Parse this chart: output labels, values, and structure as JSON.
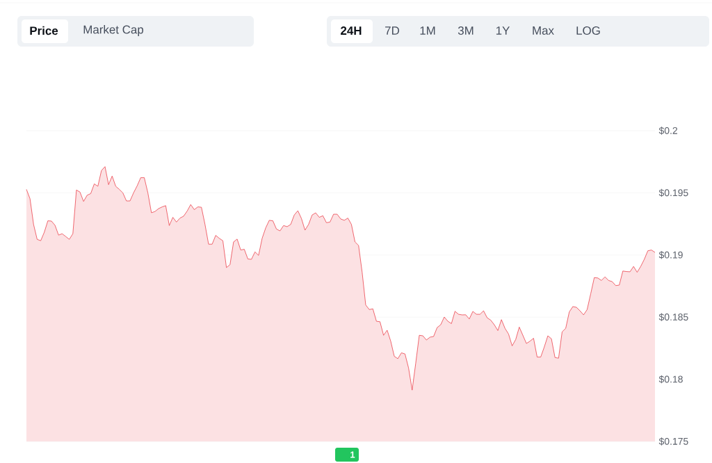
{
  "chart_data": {
    "type": "area",
    "color": "#ea3943",
    "categories": [
      null,
      null,
      null,
      null,
      null,
      null,
      null,
      null,
      null,
      null,
      null,
      null,
      null,
      null,
      null,
      null,
      null,
      null,
      null,
      null,
      null,
      null,
      null,
      null,
      null,
      null,
      null,
      null,
      null,
      null,
      null,
      null,
      null,
      null,
      null,
      null,
      null,
      null,
      null,
      null,
      null,
      null,
      null,
      null,
      null,
      null,
      null,
      null,
      null,
      null,
      null,
      null,
      null,
      null,
      null,
      null,
      null,
      null,
      null,
      null,
      null,
      null,
      null,
      null,
      null,
      null,
      null,
      null,
      null,
      null,
      null,
      null,
      null,
      null,
      null,
      null,
      null,
      null,
      null,
      null,
      null,
      null,
      null,
      null,
      null,
      null,
      null,
      null,
      null,
      null,
      null,
      null,
      null,
      null,
      null,
      null,
      null,
      null,
      null,
      null,
      null,
      null,
      null,
      null,
      null,
      null,
      null,
      null,
      null,
      null,
      null,
      null,
      null,
      null,
      null,
      null,
      null,
      null,
      null,
      null,
      null,
      null,
      null,
      null,
      null,
      null,
      null,
      null,
      null,
      null,
      null,
      null,
      null,
      null,
      null,
      null,
      null,
      null,
      null,
      null,
      null,
      null,
      null,
      null,
      null,
      null,
      null,
      null,
      null,
      null,
      null,
      null,
      null,
      null,
      null,
      null,
      null,
      null,
      null,
      null,
      null,
      null,
      null,
      null,
      null,
      null,
      null,
      null,
      null,
      null,
      null,
      null,
      null,
      null,
      null,
      null,
      null
    ],
    "values": [
      0.19528,
      0.19453,
      0.19246,
      0.19126,
      0.19115,
      0.19183,
      0.19275,
      0.19273,
      0.19239,
      0.1916,
      0.19171,
      0.19149,
      0.19126,
      0.19171,
      0.19523,
      0.19506,
      0.19431,
      0.19481,
      0.19494,
      0.19572,
      0.19553,
      0.19679,
      0.19711,
      0.19566,
      0.19635,
      0.19553,
      0.19528,
      0.195,
      0.19435,
      0.19435,
      0.195,
      0.19556,
      0.19622,
      0.19622,
      0.195,
      0.1934,
      0.1935,
      0.19373,
      0.19387,
      0.19397,
      0.19237,
      0.19303,
      0.19265,
      0.19297,
      0.19312,
      0.19353,
      0.19406,
      0.19365,
      0.19387,
      0.19384,
      0.19246,
      0.19087,
      0.19087,
      0.19158,
      0.19134,
      0.19115,
      0.18899,
      0.18922,
      0.19105,
      0.19128,
      0.1904,
      0.19046,
      0.18968,
      0.18965,
      0.19025,
      0.18997,
      0.19134,
      0.19218,
      0.19279,
      0.19275,
      0.19209,
      0.19194,
      0.19237,
      0.19228,
      0.19246,
      0.19322,
      0.19356,
      0.19294,
      0.192,
      0.19246,
      0.19322,
      0.19339,
      0.19303,
      0.19316,
      0.1926,
      0.19265,
      0.19328,
      0.19328,
      0.1929,
      0.19279,
      0.19297,
      0.19246,
      0.19105,
      0.19077,
      0.18861,
      0.18598,
      0.18561,
      0.18567,
      0.18467,
      0.18463,
      0.18354,
      0.18395,
      0.18307,
      0.18185,
      0.18166,
      0.18213,
      0.18204,
      0.18091,
      0.17913,
      0.18129,
      0.18354,
      0.1835,
      0.18316,
      0.18339,
      0.18344,
      0.18416,
      0.18439,
      0.18501,
      0.18467,
      0.18448,
      0.18547,
      0.18523,
      0.18518,
      0.18519,
      0.18485,
      0.18546,
      0.18523,
      0.18523,
      0.18551,
      0.18495,
      0.18476,
      0.18439,
      0.18392,
      0.1848,
      0.1841,
      0.18364,
      0.18269,
      0.1832,
      0.1842,
      0.18354,
      0.18288,
      0.18307,
      0.1833,
      0.18179,
      0.18179,
      0.1826,
      0.1835,
      0.18326,
      0.18175,
      0.1817,
      0.18382,
      0.1841,
      0.18542,
      0.18585,
      0.18579,
      0.18551,
      0.18518,
      0.18561,
      0.18688,
      0.18818,
      0.18815,
      0.18795,
      0.18824,
      0.18795,
      0.18786,
      0.18754,
      0.18758,
      0.18871,
      0.18867,
      0.18865,
      0.18908,
      0.18861,
      0.18908,
      0.18965,
      0.19034,
      0.1904,
      0.19021
    ],
    "ylim": [
      0.175,
      0.2
    ],
    "yticks": [
      {
        "value": 0.175,
        "label": "$0.175"
      },
      {
        "value": 0.18,
        "label": "$0.18"
      },
      {
        "value": 0.185,
        "label": "$0.185"
      },
      {
        "value": 0.19,
        "label": "$0.19"
      },
      {
        "value": 0.195,
        "label": "$0.195"
      },
      {
        "value": 0.2,
        "label": "$0.2"
      }
    ],
    "grid": "y",
    "marker": "none",
    "line_style": "solid",
    "annotations": [
      "Price",
      "Market Cap",
      "24H",
      "7D",
      "1M",
      "3M",
      "1Y",
      "Max",
      "LOG",
      "1"
    ]
  }
}
